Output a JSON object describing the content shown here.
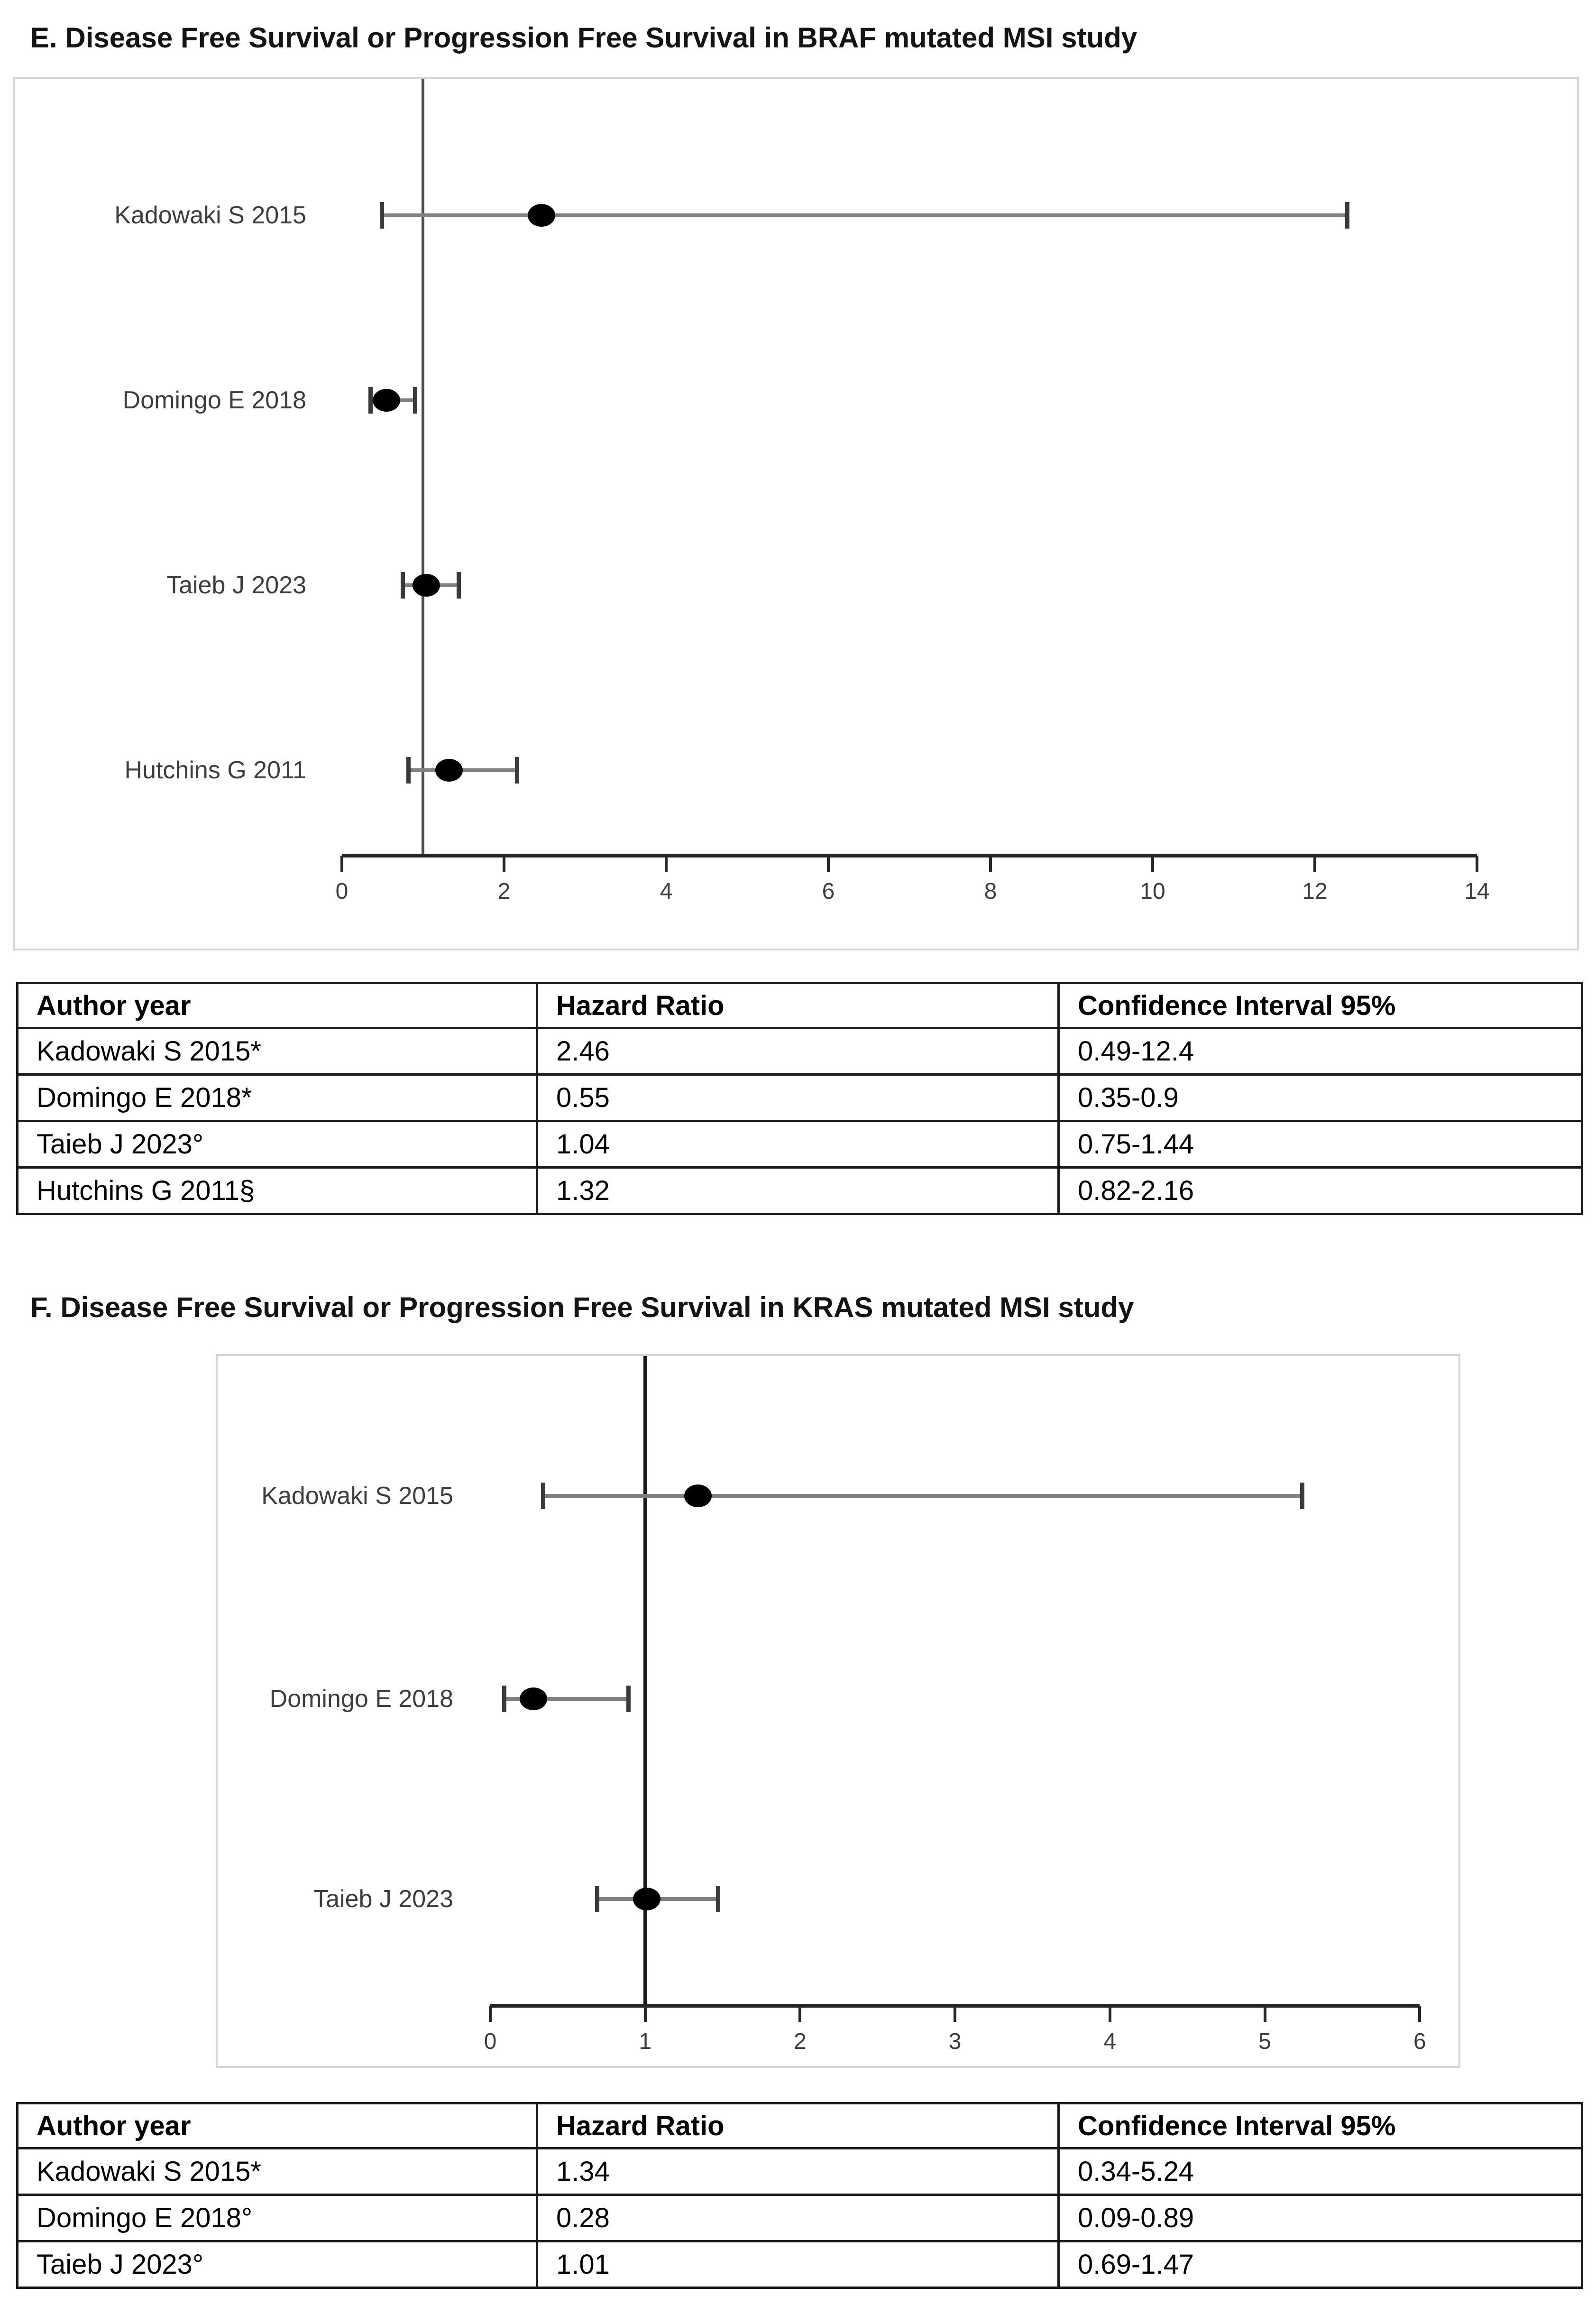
{
  "colors": {
    "marker": "#000000",
    "whisker_line": "#808080",
    "whisker_cap": "#3a3a3a",
    "axis": "#262626",
    "reference_line_e": "#4d4d4d",
    "reference_line_f": "#1a1a1a",
    "plot_border": "#d4d4d4",
    "label_text": "#3d3d3d",
    "title_text": "#141414",
    "table_border": "#1a1a1a"
  },
  "chart_data": [
    {
      "type": "scatter",
      "subtype": "forest-plot",
      "title": "E. Disease Free Survival or Progression Free Survival in BRAF mutated MSI study",
      "x_axis": {
        "min": 0,
        "max": 14,
        "ticks": [
          0,
          2,
          4,
          6,
          8,
          10,
          12,
          14
        ]
      },
      "reference_line_x": 1,
      "grid": false,
      "studies": [
        {
          "label": "Kadowaki S 2015",
          "hr": 2.46,
          "ci_low": 0.49,
          "ci_high": 12.4
        },
        {
          "label": "Domingo E 2018",
          "hr": 0.55,
          "ci_low": 0.35,
          "ci_high": 0.9
        },
        {
          "label": "Taieb J 2023",
          "hr": 1.04,
          "ci_low": 0.75,
          "ci_high": 1.44
        },
        {
          "label": "Hutchins G 2011",
          "hr": 1.32,
          "ci_low": 0.82,
          "ci_high": 2.16
        }
      ],
      "table": {
        "headers": [
          "Author year",
          "Hazard Ratio",
          "Confidence Interval 95%"
        ],
        "rows": [
          [
            "Kadowaki S 2015*",
            "2.46",
            "0.49-12.4"
          ],
          [
            "Domingo E 2018*",
            "0.55",
            "0.35-0.9"
          ],
          [
            "Taieb J 2023°",
            "1.04",
            "0.75-1.44"
          ],
          [
            "Hutchins G 2011§",
            "1.32",
            "0.82-2.16"
          ]
        ]
      }
    },
    {
      "type": "scatter",
      "subtype": "forest-plot",
      "title": "F. Disease Free Survival or Progression Free Survival in KRAS mutated MSI study",
      "x_axis": {
        "min": 0,
        "max": 6,
        "ticks": [
          0,
          1,
          2,
          3,
          4,
          5,
          6
        ]
      },
      "reference_line_x": 1,
      "grid": false,
      "studies": [
        {
          "label": "Kadowaki S 2015",
          "hr": 1.34,
          "ci_low": 0.34,
          "ci_high": 5.24
        },
        {
          "label": "Domingo E 2018",
          "hr": 0.28,
          "ci_low": 0.09,
          "ci_high": 0.89
        },
        {
          "label": "Taieb J 2023",
          "hr": 1.01,
          "ci_low": 0.69,
          "ci_high": 1.47
        }
      ],
      "table": {
        "headers": [
          "Author year",
          "Hazard Ratio",
          "Confidence Interval 95%"
        ],
        "rows": [
          [
            "Kadowaki S 2015*",
            "1.34",
            "0.34-5.24"
          ],
          [
            "Domingo E 2018°",
            "0.28",
            "0.09-0.89"
          ],
          [
            "Taieb J 2023°",
            "1.01",
            "0.69-1.47"
          ]
        ]
      }
    }
  ]
}
